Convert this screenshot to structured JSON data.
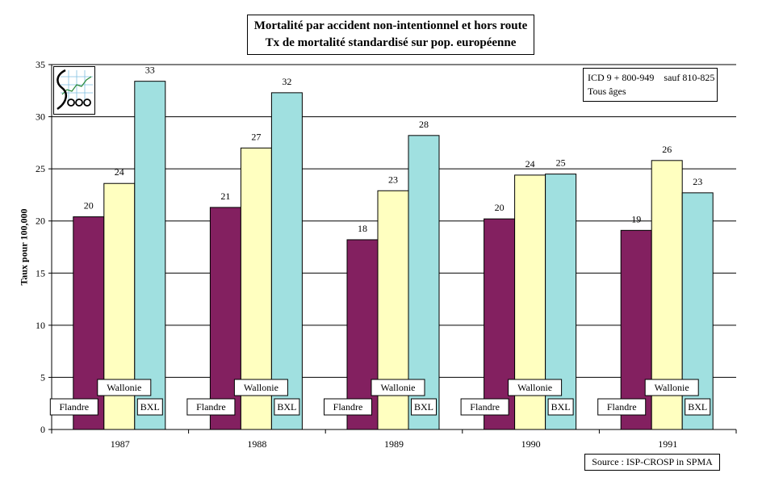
{
  "title_line1": "Mortalité par accident non-intentionnel  et hors route",
  "title_line2": "Tx de mortalité standardisé sur pop. européenne",
  "note_line1": "ICD 9 + 800-949    sauf 810-825",
  "note_line2": "Tous âges",
  "source": "Source : ISP-CROSP in SPMA",
  "ylabel": "Taux pour 100,000",
  "colors": {
    "Flandre": "#832060",
    "Wallonie": "#FFFFC0",
    "BXL": "#A0E0E0"
  },
  "chart_data": {
    "type": "bar",
    "title": "Mortalité par accident non-intentionnel  et hors route Tx de mortalité standardisé sur pop. européenne",
    "xlabel": "",
    "ylabel": "Taux pour 100,000",
    "ylim": [
      0,
      35
    ],
    "yticks": [
      0,
      5,
      10,
      15,
      20,
      25,
      30,
      35
    ],
    "grid": true,
    "categories": [
      "1987",
      "1988",
      "1989",
      "1990",
      "1991"
    ],
    "series": [
      {
        "name": "Flandre",
        "values": [
          20.4,
          21.3,
          18.2,
          20.2,
          19.1
        ],
        "labels": [
          "20",
          "21",
          "18",
          "20",
          "19"
        ]
      },
      {
        "name": "Wallonie",
        "values": [
          23.6,
          27.0,
          22.9,
          24.4,
          25.8
        ],
        "labels": [
          "24",
          "27",
          "23",
          "24",
          "26"
        ]
      },
      {
        "name": "BXL",
        "values": [
          33.4,
          32.3,
          28.2,
          24.5,
          22.7
        ],
        "labels": [
          "33",
          "32",
          "28",
          "25",
          "23"
        ]
      }
    ]
  }
}
